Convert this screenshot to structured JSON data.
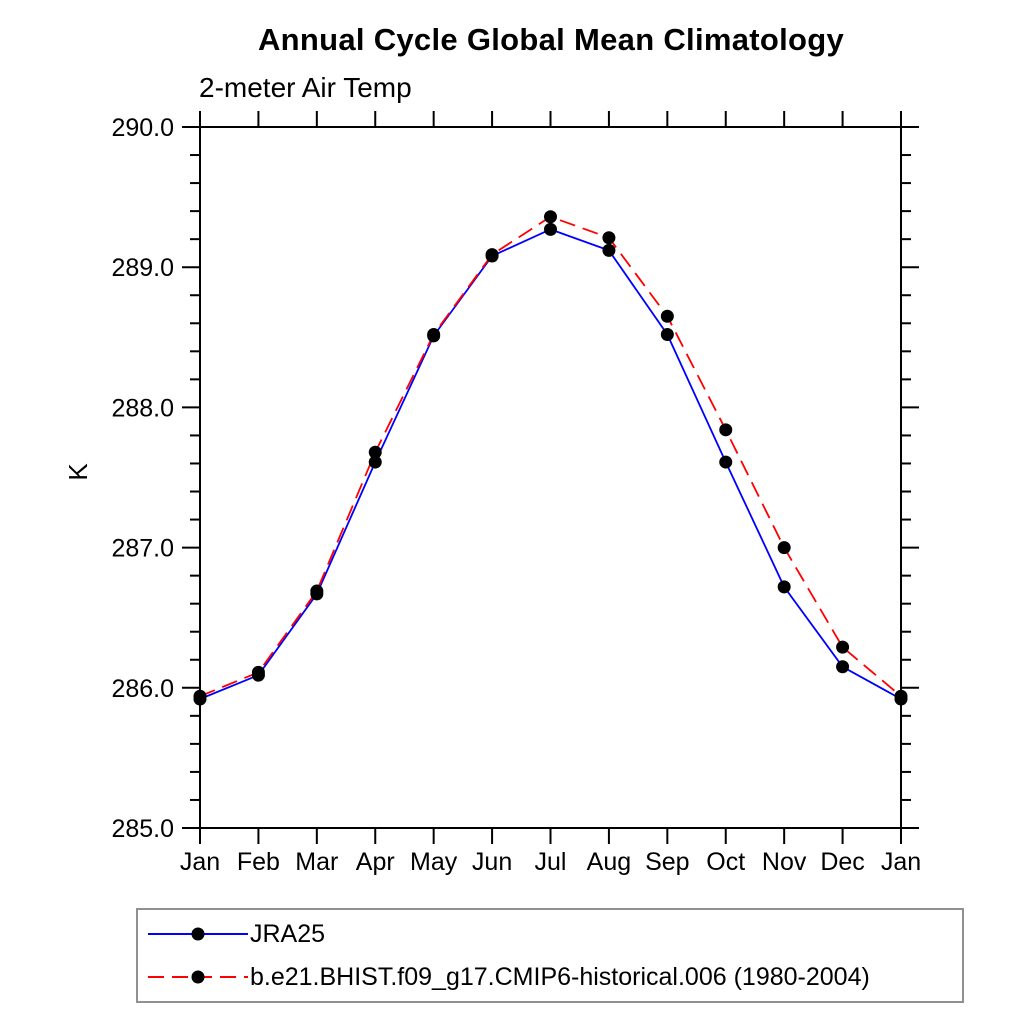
{
  "page": {
    "background": "#ffffff"
  },
  "chart_data": {
    "type": "line",
    "title": "Annual Cycle Global Mean Climatology",
    "subtitle": "2-meter Air Temp",
    "ylabel": "K",
    "categories": [
      "Jan",
      "Feb",
      "Mar",
      "Apr",
      "May",
      "Jun",
      "Jul",
      "Aug",
      "Sep",
      "Oct",
      "Nov",
      "Dec",
      "Jan"
    ],
    "ylim": [
      285.0,
      290.0
    ],
    "y_major_ticks": [
      285.0,
      286.0,
      287.0,
      288.0,
      289.0,
      290.0
    ],
    "y_tick_labels": [
      "285.0",
      "286.0",
      "287.0",
      "288.0",
      "289.0",
      "290.0"
    ],
    "y_minor_step": 0.2,
    "grid": false,
    "axis_color": "#000000",
    "marker_color": "#000000",
    "marker_radius": 6.5,
    "legend": {
      "position": "bottom-left",
      "border_color": "#909090"
    },
    "series": [
      {
        "name": "JRA25",
        "color": "#0000ff",
        "line_style": "solid",
        "dash": "",
        "values": [
          285.92,
          286.09,
          286.67,
          287.61,
          288.51,
          289.08,
          289.27,
          289.12,
          288.52,
          287.61,
          286.72,
          286.15,
          285.92
        ]
      },
      {
        "name": "b.e21.BHIST.f09_g17.CMIP6-historical.006 (1980-2004)",
        "color": "#ff0000",
        "line_style": "dashed",
        "dash": "16 8",
        "values": [
          285.94,
          286.11,
          286.69,
          287.68,
          288.52,
          289.09,
          289.36,
          289.21,
          288.65,
          287.84,
          287.0,
          286.29,
          285.94
        ]
      }
    ]
  }
}
